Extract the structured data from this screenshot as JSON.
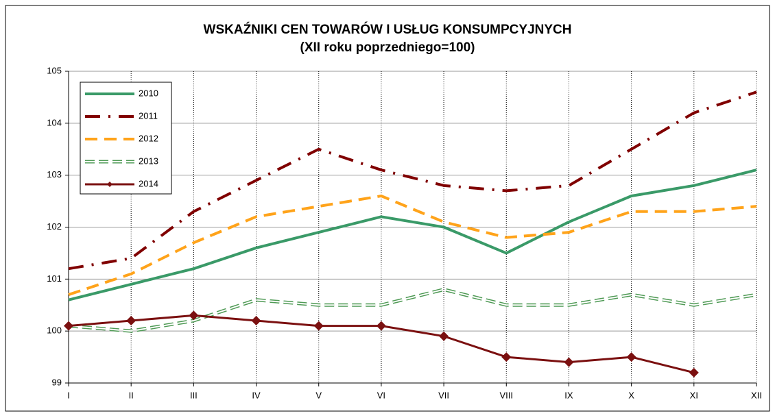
{
  "chart_data": {
    "type": "line",
    "title": "WSKAŹNIKI CEN TOWARÓW I USŁUG KONSUMPCYJNYCH",
    "subtitle": "(XII roku poprzedniego=100)",
    "categories": [
      "I",
      "II",
      "III",
      "IV",
      "V",
      "VI",
      "VII",
      "VIII",
      "IX",
      "X",
      "XI",
      "XII"
    ],
    "series": [
      {
        "name": "2010",
        "color": "#3a9a68",
        "style": "solid",
        "values": [
          100.6,
          100.9,
          101.2,
          101.6,
          101.9,
          102.2,
          102.0,
          101.5,
          102.1,
          102.6,
          102.8,
          103.1
        ]
      },
      {
        "name": "2011",
        "color": "#800000",
        "style": "dash-dot",
        "values": [
          101.2,
          101.4,
          102.3,
          102.9,
          103.5,
          103.1,
          102.8,
          102.7,
          102.8,
          103.5,
          104.2,
          104.6
        ]
      },
      {
        "name": "2012",
        "color": "#ffa31a",
        "style": "dash",
        "values": [
          100.7,
          101.1,
          101.7,
          102.2,
          102.4,
          102.6,
          102.1,
          101.8,
          101.9,
          102.3,
          102.3,
          102.4
        ]
      },
      {
        "name": "2013",
        "color": "#4f9a55",
        "style": "double",
        "values": [
          100.1,
          100.0,
          100.2,
          100.6,
          100.5,
          100.5,
          100.8,
          100.5,
          100.5,
          100.7,
          100.5,
          100.7
        ]
      },
      {
        "name": "2014",
        "color": "#7b1010",
        "style": "marker",
        "values": [
          100.1,
          100.2,
          100.3,
          100.2,
          100.1,
          100.1,
          99.9,
          99.5,
          99.4,
          99.5,
          99.2,
          null
        ]
      }
    ],
    "ylim": [
      99,
      105
    ],
    "yticks": [
      99,
      100,
      101,
      102,
      103,
      104,
      105
    ],
    "grid": true,
    "legend": "upper left"
  }
}
